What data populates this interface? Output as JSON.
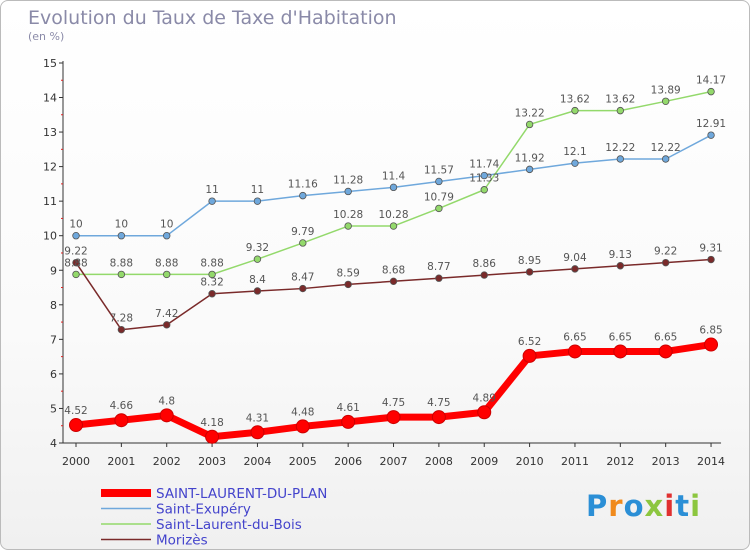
{
  "header": {
    "title": "Evolution du Taux de Taxe d'Habitation",
    "unit": "(en %)"
  },
  "logo": {
    "text": "Proxiti",
    "colors": [
      "#2b8fd6",
      "#f08a1c",
      "#2b8fd6",
      "#8cc63f",
      "#e03030",
      "#2b8fd6",
      "#8cc63f"
    ]
  },
  "chart_data": {
    "type": "line",
    "title": "Evolution du Taux de Taxe d'Habitation",
    "ylabel": "(en %)",
    "xlabel": "",
    "x": [
      "2000",
      "2001",
      "2002",
      "2003",
      "2004",
      "2005",
      "2006",
      "2007",
      "2008",
      "2009",
      "2010",
      "2011",
      "2012",
      "2013",
      "2014"
    ],
    "ylim": [
      4,
      15
    ],
    "yticks": [
      4,
      5,
      6,
      7,
      8,
      9,
      10,
      11,
      12,
      13,
      14,
      15
    ],
    "grid": false,
    "legend_position": "bottom-left",
    "series": [
      {
        "name": "SAINT-LAURENT-DU-PLAN",
        "color": "#ff0000",
        "highlight": true,
        "values": [
          4.52,
          4.66,
          4.8,
          4.18,
          4.31,
          4.48,
          4.61,
          4.75,
          4.75,
          4.89,
          6.52,
          6.65,
          6.65,
          6.65,
          6.85
        ],
        "labels": [
          "4.52",
          "4.66",
          "4.8",
          "4.18",
          "4.31",
          "4.48",
          "4.61",
          "4.75",
          "4.75",
          "4.89",
          "6.52",
          "6.65",
          "6.65",
          "6.65",
          "6.85"
        ]
      },
      {
        "name": "Saint-Exupéry",
        "color": "#6fa8dc",
        "values": [
          10,
          10,
          10,
          11,
          11,
          11.16,
          11.28,
          11.4,
          11.57,
          11.74,
          11.92,
          12.1,
          12.22,
          12.22,
          12.91
        ],
        "labels": [
          "10",
          "10",
          "10",
          "11",
          "11",
          "11.16",
          "11.28",
          "11.4",
          "11.57",
          "11.74",
          "11.92",
          "12.1",
          "12.22",
          "12.22",
          "12.91"
        ]
      },
      {
        "name": "Saint-Laurent-du-Bois",
        "color": "#93d96b",
        "values": [
          8.88,
          8.88,
          8.88,
          8.88,
          9.32,
          9.79,
          10.28,
          10.28,
          10.79,
          11.33,
          13.22,
          13.62,
          13.62,
          13.89,
          14.17
        ],
        "labels": [
          "8.88",
          "8.88",
          "8.88",
          "8.88",
          "9.32",
          "9.79",
          "10.28",
          "10.28",
          "10.79",
          "11.33",
          "13.22",
          "13.62",
          "13.62",
          "13.89",
          "14.17"
        ]
      },
      {
        "name": "Morizès",
        "color": "#7a2a2a",
        "values": [
          9.22,
          7.28,
          7.42,
          8.32,
          8.4,
          8.47,
          8.59,
          8.68,
          8.77,
          8.86,
          8.95,
          9.04,
          9.13,
          9.22,
          9.31
        ],
        "labels": [
          "9.22",
          "7.28",
          "7.42",
          "8.32",
          "8.4",
          "8.47",
          "8.59",
          "8.68",
          "8.77",
          "8.86",
          "8.95",
          "9.04",
          "9.13",
          "9.22",
          "9.31"
        ]
      }
    ]
  }
}
